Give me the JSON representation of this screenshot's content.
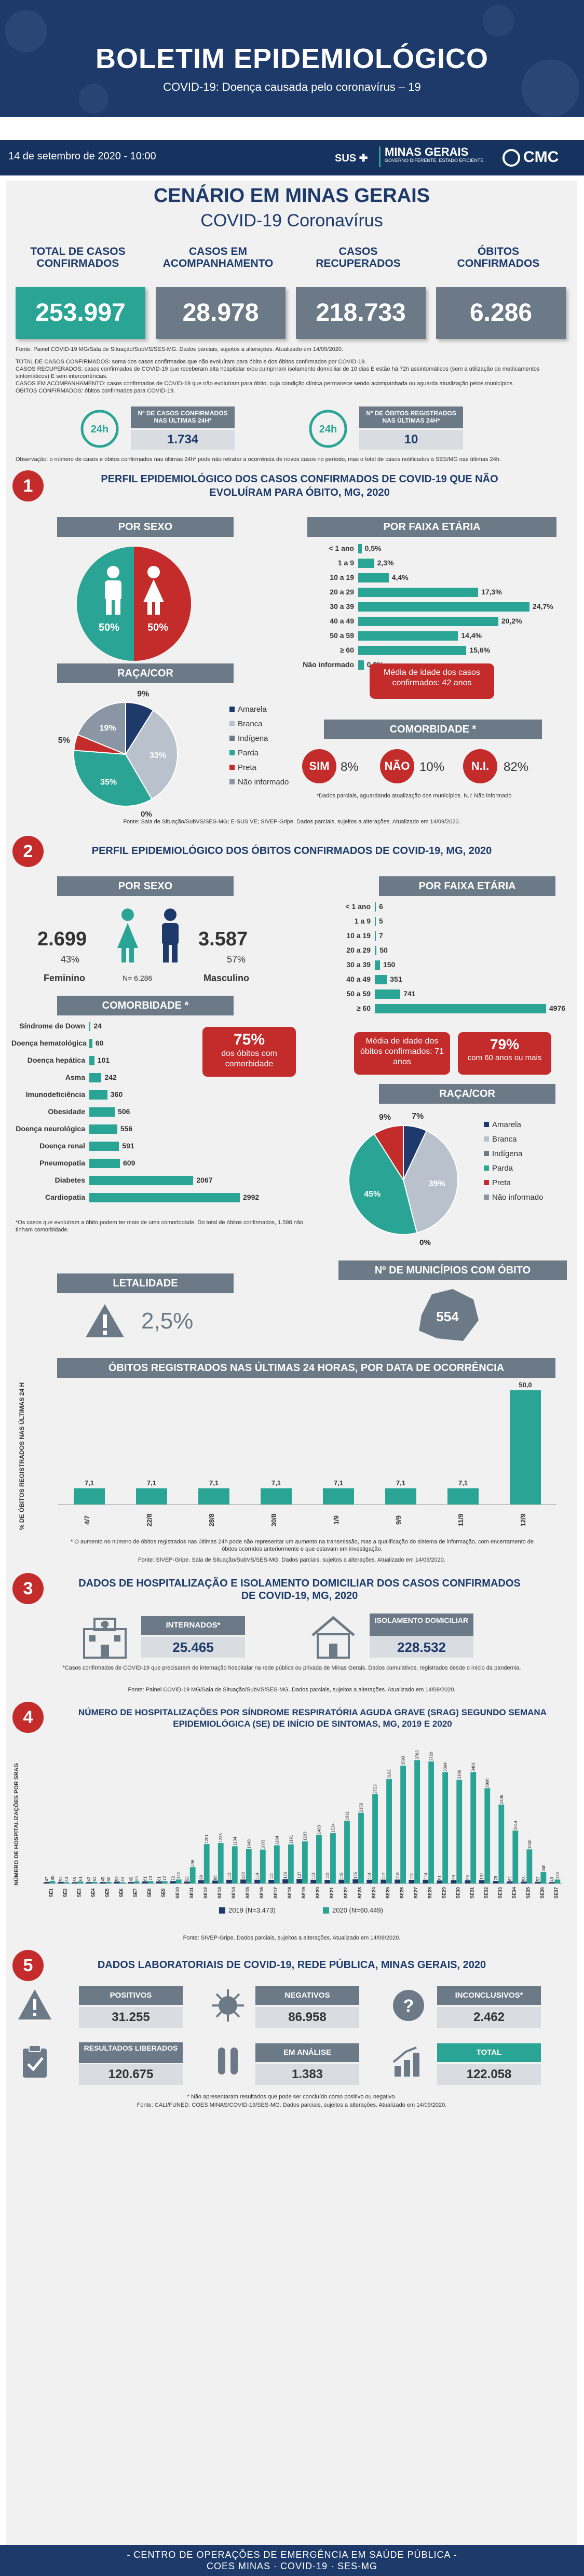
{
  "header": {
    "title": "BOLETIM EPIDEMIOLÓGICO",
    "subtitle": "COVID-19: Doença causada pelo coronavírus – 19",
    "date": "14 de setembro de 2020 - 10:00",
    "logo_sus": "SUS",
    "logo_mg": "MINAS GERAIS",
    "logo_mg_sub": "GOVERNO DIFERENTE. ESTADO EFICIENTE.",
    "logo_cmc": "CMC"
  },
  "overview": {
    "title_1": "CENÁRIO EM MINAS GERAIS",
    "title_2": "COVID-19 Coronavírus",
    "stats": [
      {
        "label": "TOTAL DE CASOS CONFIRMADOS",
        "value": "253.997",
        "color": "#2aa595"
      },
      {
        "label": "CASOS EM ACOMPANHAMENTO",
        "value": "28.978",
        "color": "#6c7a88"
      },
      {
        "label": "CASOS RECUPERADOS",
        "value": "218.733",
        "color": "#6c7a88"
      },
      {
        "label": "ÓBITOS CONFIRMADOS",
        "value": "6.286",
        "color": "#6c7a88"
      }
    ],
    "source": "Fonte: Painel COVID-19 MG/Sala de Situação/SubVS/SES-MG. Dados parciais, sujeitos a alterações. Atualizado em 14/09/2020.",
    "notes": [
      "TOTAL DE CASOS CONFIRMADOS: soma dos casos confirmados que não evoluíram para óbito e dos óbitos confirmados por COVID-19.",
      "CASOS RECUPERADOS: casos confirmados de COVID-19 que receberam alta hospitalar e/ou cumpriram isolamento domiciliar de 10 dias E estão há 72h assintomáticos (sem a utilização de medicamentos sintomáticos) E sem intercorrências.",
      "CASOS EM ACOMPANHAMENTO: casos confirmados de COVID-19 que não evoluíram para óbito, cuja condição clínica permanece sendo acompanhada ou aguarda atualização pelos municípios.",
      "ÓBITOS CONFIRMADOS: óbitos confirmados para COVID-19."
    ],
    "last24_cases_label": "Nº DE CASOS CONFIRMADOS NAS ÚLTIMAS 24H*",
    "last24_cases": "1.734",
    "last24_deaths_label": "Nº DE ÓBITOS REGISTRADOS NAS ÚLTIMAS 24H*",
    "last24_deaths": "10",
    "badge_24h": "24h",
    "observation": "Observação: o número de casos e óbitos confirmados nas últimas 24h* pode não retratar a ocorrência de novos casos no período, mas o total de casos notificados à SES/MG nas últimas 24h."
  },
  "s1": {
    "num": "1",
    "title": "PERFIL EPIDEMIOLÓGICO DOS CASOS CONFIRMADOS DE COVID-19 QUE NÃO EVOLUÍRAM PARA ÓBITO, MG, 2020",
    "sex_title": "POR SEXO",
    "sex_m": "50%",
    "sex_f": "50%",
    "age_title": "POR FAIXA ETÁRIA",
    "ages": [
      {
        "label": "< 1 ano",
        "value": 0.5,
        "text": "0,5%"
      },
      {
        "label": "1 a 9",
        "value": 2.3,
        "text": "2,3%"
      },
      {
        "label": "10 a 19",
        "value": 4.4,
        "text": "4,4%"
      },
      {
        "label": "20 a 29",
        "value": 17.3,
        "text": "17,3%"
      },
      {
        "label": "30 a 39",
        "value": 24.7,
        "text": "24,7%"
      },
      {
        "label": "40 a 49",
        "value": 20.2,
        "text": "20,2%"
      },
      {
        "label": "50 a 59",
        "value": 14.4,
        "text": "14,4%"
      },
      {
        "label": "≥ 60",
        "value": 15.6,
        "text": "15,6%"
      },
      {
        "label": "Não informado",
        "value": 0.8,
        "text": "0,8%"
      }
    ],
    "age_mean": "Média de idade dos casos confirmados: 42 anos",
    "race_title": "RAÇA/COR",
    "race": [
      {
        "label": "Amarela",
        "value": 9,
        "text": "9%",
        "color": "#1d3a6b"
      },
      {
        "label": "Branca",
        "value": 33,
        "text": "33%",
        "color": "#b9c2cc"
      },
      {
        "label": "Indígena",
        "value": 0,
        "text": "0%",
        "color": "#6c7a88"
      },
      {
        "label": "Parda",
        "value": 35,
        "text": "35%",
        "color": "#2aa595"
      },
      {
        "label": "Preta",
        "value": 5,
        "text": "5%",
        "color": "#c42b2b"
      },
      {
        "label": "Não informado",
        "value": 19,
        "text": "19%",
        "color": "#8a96a3"
      }
    ],
    "comorb_title": "COMORBIDADE *",
    "comorb": [
      {
        "k": "SIM",
        "v": "8%"
      },
      {
        "k": "NÃO",
        "v": "10%"
      },
      {
        "k": "N.I.",
        "v": "82%"
      }
    ],
    "comorb_note": "*Dados parciais, aguardando atualização dos municípios. N.I: Não informado",
    "source": "Fonte: Sala de Situação/SubVS/SES-MG; E-SUS VE; SIVEP-Gripe. Dados parciais, sujeitos a alterações. Atualizado em 14/09/2020."
  },
  "s2": {
    "num": "2",
    "title": "PERFIL EPIDEMIOLÓGICO DOS ÓBITOS CONFIRMADOS DE COVID-19, MG, 2020",
    "sex_title": "POR SEXO",
    "fem_value": "2.699",
    "fem_pct": "43%",
    "fem_label": "Feminino",
    "masc_value": "3.587",
    "masc_pct": "57%",
    "masc_label": "Masculino",
    "n_total": "N= 6.286",
    "age_title": "POR FAIXA ETÁRIA",
    "ages": [
      {
        "label": "< 1 ano",
        "value": 6
      },
      {
        "label": "1 a 9",
        "value": 5
      },
      {
        "label": "10 a 19",
        "value": 7
      },
      {
        "label": "20 a 29",
        "value": 50
      },
      {
        "label": "30 a 39",
        "value": 150
      },
      {
        "label": "40 a 49",
        "value": 351
      },
      {
        "label": "50 a 59",
        "value": 741
      },
      {
        "label": "≥ 60",
        "value": 4976
      }
    ],
    "age_mean": "Média de idade dos óbitos confirmados: 71 anos",
    "age_60_pct": "79%",
    "age_60_text": "com 60 anos ou mais",
    "comorb_title": "COMORBIDADE *",
    "comorb": [
      {
        "label": "Síndrome de Down",
        "value": 24
      },
      {
        "label": "Doença hematológica",
        "value": 60
      },
      {
        "label": "Doença hepática",
        "value": 101
      },
      {
        "label": "Asma",
        "value": 242
      },
      {
        "label": "Imunodeficiência",
        "value": 360
      },
      {
        "label": "Obesidade",
        "value": 506
      },
      {
        "label": "Doença neurológica",
        "value": 556
      },
      {
        "label": "Doença renal",
        "value": 591
      },
      {
        "label": "Pneumopatia",
        "value": 609
      },
      {
        "label": "Diabetes",
        "value": 2067
      },
      {
        "label": "Cardiopatia",
        "value": 2992
      }
    ],
    "comorb_pct": "75%",
    "comorb_pct_text": "dos óbitos com comorbidade",
    "comorb_note": "*Os casos que evoluíram a óbito podem ter mais de uma comorbidade. Do total de óbitos confirmados, 1.598 não tinham comorbidade.",
    "race_title": "RAÇA/COR",
    "race": [
      {
        "label": "Amarela",
        "value": 7,
        "text": "7%",
        "color": "#1d3a6b"
      },
      {
        "label": "Branca",
        "value": 39,
        "text": "39%",
        "color": "#b9c2cc"
      },
      {
        "label": "Indígena",
        "value": 0,
        "text": "0%",
        "color": "#6c7a88"
      },
      {
        "label": "Parda",
        "value": 45,
        "text": "45%",
        "color": "#2aa595"
      },
      {
        "label": "Preta",
        "value": 9,
        "text": "9%",
        "color": "#c42b2b"
      },
      {
        "label": "Não informado",
        "value": 0,
        "text": "0%",
        "color": "#8a96a3"
      }
    ],
    "mun_title": "Nº DE MUNICÍPIOS COM ÓBITO",
    "mun_value": "554",
    "let_title": "LETALIDADE",
    "let_value": "2,5%",
    "daily_title": "ÓBITOS REGISTRADOS NAS ÚLTIMAS 24 HORAS, POR DATA DE OCORRÊNCIA",
    "daily_ylabel": "% DE ÓBITOS REGISTRADOS NAS ÚLTIMAS 24 H",
    "daily_note": "* O aumento no número de óbitos registrados nas últimas 24h pode não representar um aumento na transmissão, mas a qualificação do sistema de informação, com encerramento de óbitos ocorridos anteriormente e que estavam em investigação.",
    "daily_source": "Fonte: SIVEP-Gripe. Sala de Situação/SubVS/SES-MG. Dados parciais, sujeitos a alterações. Atualizado em 14/09/2020."
  },
  "s3": {
    "num": "3",
    "title": "DADOS DE HOSPITALIZAÇÃO E ISOLAMENTO DOMICILIAR DOS CASOS CONFIRMADOS DE COVID-19, MG, 2020",
    "hosp_label": "INTERNADOS*",
    "hosp_value": "25.465",
    "iso_label": "ISOLAMENTO DOMICILIAR",
    "iso_value": "228.532",
    "note": "*Casos confirmados de COVID-19 que precisaram de internação hospitalar na rede pública ou privada de Minas Gerais. Dados cumulativos, registrados desde o início da pandemia.",
    "source": "Fonte: Painel COVID-19 MG/Sala de Situação/SubVS/SES-MG. Dados parciais, sujeitos a alterações. Atualizado em 14/09/2020."
  },
  "s4": {
    "num": "4",
    "title": "NÚMERO DE HOSPITALIZAÇÕES POR SÍNDROME RESPIRATÓRIA AGUDA GRAVE (SRAG) SEGUNDO SEMANA EPIDEMIOLÓGICA (SE) DE INÍCIO DE SINTOMAS, MG, 2019 E 2020",
    "ylabel": "NÚMERO DE HOSPITALIZAÇÕES POR SRAG",
    "source": "Fonte: SIVEP-Gripe. Dados parciais, sujeitos a alterações. Atualizado em 14/09/2020."
  },
  "s5": {
    "num": "5",
    "title": "DADOS LABORATORIAIS DE COVID-19, REDE PÚBLICA, MINAS GERAIS, 2020",
    "boxes": [
      {
        "label": "POSITIVOS",
        "value": "31.255"
      },
      {
        "label": "NEGATIVOS",
        "value": "86.958"
      },
      {
        "label": "INCONCLUSIVOS*",
        "value": "2.462"
      },
      {
        "label": "RESULTADOS LIBERADOS",
        "value": "120.675"
      },
      {
        "label": "EM ANÁLISE",
        "value": "1.383"
      },
      {
        "label": "TOTAL",
        "value": "122.058"
      }
    ],
    "note": "* Não apresentaram resultados que pode ser concluído como positivo ou negativo.",
    "source": "Fonte: CALI/FUNED. COES MINAS/COVID-19/SES-MG. Dados parciais, sujeitos a alterações. Atualizado em 14/09/2020."
  },
  "footer": {
    "line1": "- CENTRO DE OPERAÇÕES DE EMERGÊNCIA EM SAÚDE PÚBLICA -",
    "line2": "COES MINAS · COVID-19 · SES-MG"
  },
  "chart_data": [
    {
      "type": "bar",
      "title": "ÓBITOS REGISTRADOS NAS ÚLTIMAS 24 HORAS, POR DATA DE OCORRÊNCIA",
      "ylabel": "% DE ÓBITOS REGISTRADOS NAS ÚLTIMAS 24 H",
      "categories": [
        "4/7",
        "22/8",
        "28/8",
        "30/8",
        "1/9",
        "9/9",
        "11/9",
        "12/9"
      ],
      "values": [
        7.1,
        7.1,
        7.1,
        7.1,
        7.1,
        7.1,
        7.1,
        50.0
      ],
      "value_labels": [
        "7,1",
        "7,1",
        "7,1",
        "7,1",
        "7,1",
        "7,1",
        "7,1",
        "50,0"
      ],
      "ylim": [
        0,
        50
      ]
    },
    {
      "type": "bar",
      "title": "NÚMERO DE HOSPITALIZAÇÕES POR SÍNDROME RESPIRATÓRIA AGUDA GRAVE (SRAG) SEGUNDO SEMANA EPIDEMIOLÓGICA (SE) DE INÍCIO DE SINTOMAS, MG, 2019 E 2020",
      "ylabel": "NÚMERO DE HOSPITALIZAÇÕES POR SRAG",
      "categories": [
        "SE1",
        "SE2",
        "SE3",
        "SE4",
        "SE5",
        "SE6",
        "SE7",
        "SE8",
        "SE9",
        "SE10",
        "SE11",
        "SE12",
        "SE13",
        "SE14",
        "SE15",
        "SE16",
        "SE17",
        "SE18",
        "SE19",
        "SE20",
        "SE21",
        "SE22",
        "SE23",
        "SE24",
        "SE25",
        "SE26",
        "SE27",
        "SE28",
        "SE29",
        "SE30",
        "SE31",
        "SE32",
        "SE33",
        "SE34",
        "SE35",
        "SE36",
        "SE37"
      ],
      "series": [
        {
          "name": "2019 (N=3.473)",
          "color": "#1d3a6b",
          "values": [
            47,
            51,
            36,
            42,
            45,
            58,
            45,
            61,
            61,
            72,
            58,
            99,
            88,
            113,
            120,
            114,
            111,
            126,
            137,
            113,
            110,
            115,
            125,
            114,
            117,
            118,
            111,
            114,
            91,
            99,
            96,
            101,
            76,
            62,
            58,
            52,
            40
          ]
        },
        {
          "name": "2020 (N=60.449)",
          "color": "#2aa595",
          "values": [
            80,
            40,
            61,
            51,
            50,
            36,
            65,
            73,
            72,
            122,
            496,
            1201,
            1235,
            1134,
            1048,
            1033,
            1164,
            1191,
            1283,
            1483,
            1534,
            1911,
            2158,
            2723,
            3182,
            3593,
            3763,
            3720,
            3394,
            3166,
            3401,
            2906,
            2406,
            1614,
            1040,
            348,
            120
          ]
        }
      ]
    }
  ]
}
